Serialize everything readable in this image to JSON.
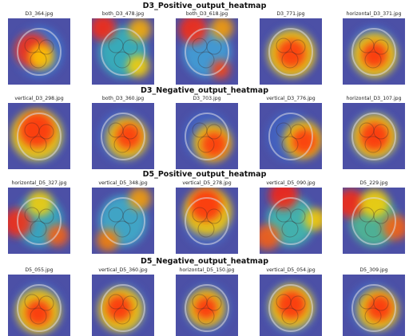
{
  "sections": [
    {
      "title": "D3_Positive_output_heatmap",
      "images": [
        {
          "label": "D3_364.jpg",
          "hot": [
            [
              30,
              40,
              22,
              "#ff2a10"
            ],
            [
              42,
              48,
              16,
              "#ffd000"
            ]
          ],
          "outer": "#3a7fd8"
        },
        {
          "label": "both_D3_478.jpg",
          "hot": [
            [
              14,
              12,
              16,
              "#ff2a10"
            ],
            [
              60,
              14,
              14,
              "#ffb000"
            ],
            [
              58,
              60,
              14,
              "#ffd000"
            ]
          ],
          "outer": "#32c8c0"
        },
        {
          "label": "both_D3_618.jpg",
          "hot": [
            [
              22,
              14,
              18,
              "#ff2a10"
            ],
            [
              58,
              12,
              14,
              "#ffa000"
            ],
            [
              56,
              64,
              12,
              "#ff4010"
            ]
          ],
          "outer": "#40b0e0"
        },
        {
          "label": "D3_771.jpg",
          "hot": [
            [
              40,
              44,
              18,
              "#ff3010"
            ],
            [
              40,
              44,
              30,
              "#ffcc00"
            ]
          ],
          "outer": "#4070d0"
        },
        {
          "label": "horizontal_D3_371.jpg",
          "hot": [
            [
              40,
              46,
              16,
              "#ff2a10"
            ],
            [
              40,
              46,
              28,
              "#ffd000"
            ]
          ],
          "outer": "#4078d8"
        }
      ]
    },
    {
      "title": "D3_Negative_output_heatmap",
      "images": [
        {
          "label": "vertical_D3_298.jpg",
          "hot": [
            [
              36,
              34,
              22,
              "#ff2a10"
            ],
            [
              36,
              40,
              32,
              "#ffd000"
            ]
          ],
          "outer": "#3a7fd8"
        },
        {
          "label": "both_D3_360.jpg",
          "hot": [
            [
              46,
              42,
              16,
              "#ff3010"
            ],
            [
              44,
              44,
              26,
              "#ffcc00"
            ]
          ],
          "outer": "#4070d0"
        },
        {
          "label": "D3_703.jpg",
          "hot": [
            [
              48,
              52,
              16,
              "#ff3010"
            ],
            [
              46,
              50,
              24,
              "#ffcc00"
            ]
          ],
          "outer": "#4068c8"
        },
        {
          "label": "vertical_D3_776.jpg",
          "hot": [
            [
              56,
              48,
              16,
              "#ff3010"
            ],
            [
              54,
              46,
              24,
              "#ffd000"
            ]
          ],
          "outer": "#4068c8"
        },
        {
          "label": "horizontal_D3_107.jpg",
          "hot": [
            [
              40,
              42,
              18,
              "#ff2a10"
            ],
            [
              40,
              42,
              28,
              "#ffcc00"
            ]
          ],
          "outer": "#4078d8"
        }
      ]
    },
    {
      "title": "D5_Positive_output_heatmap",
      "images": [
        {
          "label": "horizontal_D5_327.jpg",
          "hot": [
            [
              12,
              44,
              18,
              "#ff2a10"
            ],
            [
              40,
              20,
              16,
              "#ffd000"
            ],
            [
              62,
              60,
              14,
              "#ff6010"
            ]
          ],
          "outer": "#30c0c8"
        },
        {
          "label": "vertical_D5_348.jpg",
          "hot": [
            [
              60,
              14,
              14,
              "#ffa000"
            ],
            [
              20,
              66,
              14,
              "#ff8000"
            ]
          ],
          "outer": "#3cc0d0"
        },
        {
          "label": "vertical_D5_278.jpg",
          "hot": [
            [
              38,
              22,
              20,
              "#ff2a10"
            ],
            [
              40,
              30,
              30,
              "#ffd000"
            ]
          ],
          "outer": "#4a70c8"
        },
        {
          "label": "vertical_D5_090.jpg",
          "hot": [
            [
              30,
              10,
              18,
              "#ff2010"
            ],
            [
              10,
              62,
              16,
              "#ff6010"
            ],
            [
              70,
              40,
              14,
              "#ffd000"
            ]
          ],
          "outer": "#40d0b0"
        },
        {
          "label": "D5_229.jpg",
          "hot": [
            [
              10,
              20,
              18,
              "#ff2a10"
            ],
            [
              66,
              50,
              16,
              "#ff6010"
            ],
            [
              40,
              20,
              18,
              "#ffd000"
            ]
          ],
          "outer": "#50d090"
        }
      ]
    },
    {
      "title": "D5_Negative_output_heatmap",
      "images": [
        {
          "label": "D5_055.jpg",
          "hot": [
            [
              38,
              48,
              16,
              "#ff2a10"
            ],
            [
              38,
              46,
              28,
              "#ffd000"
            ]
          ],
          "outer": "#4070d0"
        },
        {
          "label": "vertical_D5_360.jpg",
          "hot": [
            [
              34,
              42,
              16,
              "#ff2a10"
            ],
            [
              36,
              44,
              28,
              "#ffd000"
            ]
          ],
          "outer": "#4070d0"
        },
        {
          "label": "horizontal_D5_150.jpg",
          "hot": [
            [
              38,
              42,
              14,
              "#ff2a10"
            ],
            [
              38,
              42,
              24,
              "#ffcc00"
            ]
          ],
          "outer": "#4068c8"
        },
        {
          "label": "vertical_D5_054.jpg",
          "hot": [
            [
              40,
              38,
              18,
              "#ff2a10"
            ],
            [
              40,
              40,
              28,
              "#ffd000"
            ]
          ],
          "outer": "#4078d8"
        },
        {
          "label": "D5_309.jpg",
          "hot": [
            [
              46,
              42,
              16,
              "#ff2a10"
            ],
            [
              44,
              44,
              26,
              "#ffcc00"
            ]
          ],
          "outer": "#4070d0"
        }
      ]
    }
  ]
}
